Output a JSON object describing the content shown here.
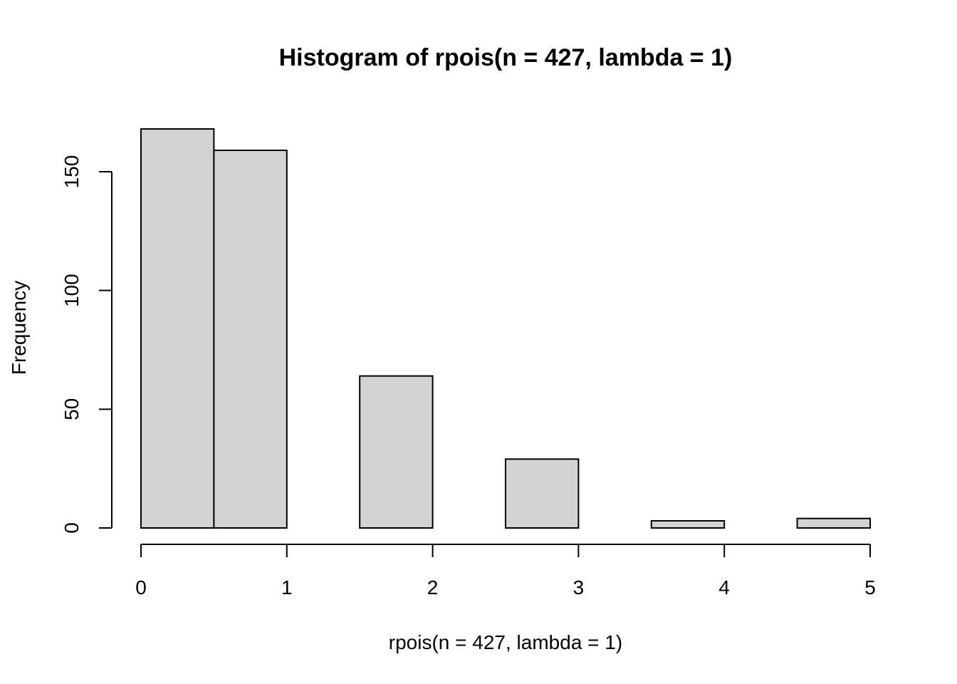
{
  "chart_data": {
    "type": "bar",
    "title": "Histogram of rpois(n = 427, lambda = 1)",
    "xlabel": "rpois(n = 427, lambda = 1)",
    "ylabel": "Frequency",
    "bins": [
      {
        "start": 0.0,
        "end": 0.5,
        "count": 168
      },
      {
        "start": 0.5,
        "end": 1.0,
        "count": 159
      },
      {
        "start": 1.0,
        "end": 1.5,
        "count": 0
      },
      {
        "start": 1.5,
        "end": 2.0,
        "count": 64
      },
      {
        "start": 2.0,
        "end": 2.5,
        "count": 0
      },
      {
        "start": 2.5,
        "end": 3.0,
        "count": 29
      },
      {
        "start": 3.0,
        "end": 3.5,
        "count": 0
      },
      {
        "start": 3.5,
        "end": 4.0,
        "count": 3
      },
      {
        "start": 4.0,
        "end": 4.5,
        "count": 0
      },
      {
        "start": 4.5,
        "end": 5.0,
        "count": 4
      }
    ],
    "x_ticks": [
      0,
      1,
      2,
      3,
      4,
      5
    ],
    "y_ticks": [
      0,
      50,
      100,
      150
    ],
    "xlim": [
      0,
      5
    ],
    "ylim": [
      0,
      168
    ],
    "grid": false,
    "bar_color": "#d3d3d3",
    "border_color": "#000000"
  }
}
